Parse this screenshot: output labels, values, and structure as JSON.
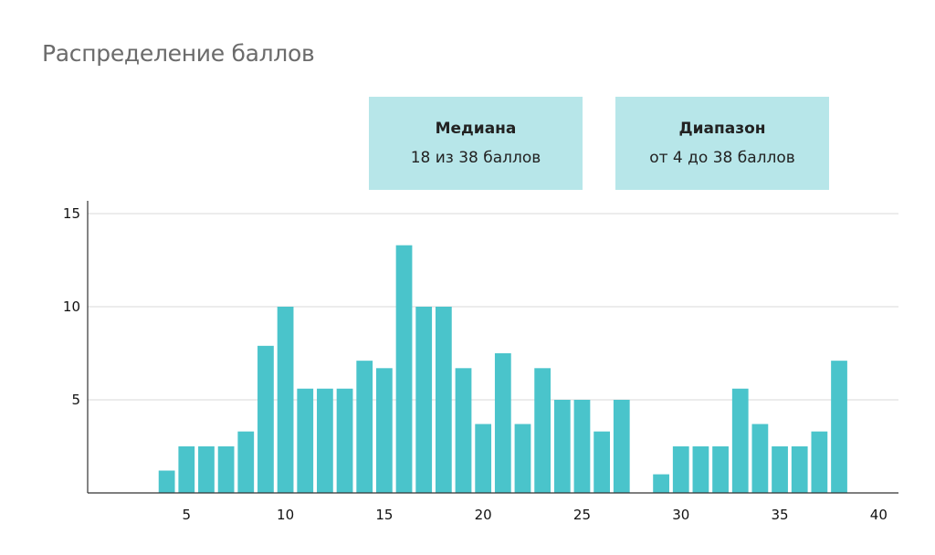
{
  "title": "Распределение баллов",
  "stats": {
    "median_label": "Медиана",
    "median_value": "18 из 38 баллов",
    "range_label": "Диапазон",
    "range_value": "от 4 до 38 баллов"
  },
  "colors": {
    "bar": "#4ac4cb",
    "stat_box": "#b7e6e9",
    "grid": "#d9d9d9",
    "axis": "#333333"
  },
  "chart_data": {
    "type": "bar",
    "title": "Распределение баллов",
    "xlabel": "",
    "ylabel": "",
    "xlim": [
      0,
      41
    ],
    "ylim": [
      0,
      15
    ],
    "x_ticks": [
      5,
      10,
      15,
      20,
      25,
      30,
      35,
      40
    ],
    "y_ticks": [
      5,
      10,
      15
    ],
    "grid": "horizontal",
    "x": [
      4,
      5,
      6,
      7,
      8,
      9,
      10,
      11,
      12,
      13,
      14,
      15,
      16,
      17,
      18,
      19,
      20,
      21,
      22,
      23,
      24,
      25,
      26,
      27,
      28,
      29,
      30,
      31,
      32,
      33,
      34,
      35,
      36,
      37,
      38
    ],
    "values": [
      1.2,
      2.5,
      2.5,
      2.5,
      3.3,
      7.9,
      10.0,
      5.6,
      5.6,
      5.6,
      7.1,
      6.7,
      13.3,
      10.0,
      10.0,
      6.7,
      3.7,
      7.5,
      3.7,
      6.7,
      5.0,
      5.0,
      3.3,
      5.0,
      0,
      1.0,
      2.5,
      2.5,
      2.5,
      5.6,
      3.7,
      2.5,
      2.5,
      3.3,
      7.1
    ]
  }
}
